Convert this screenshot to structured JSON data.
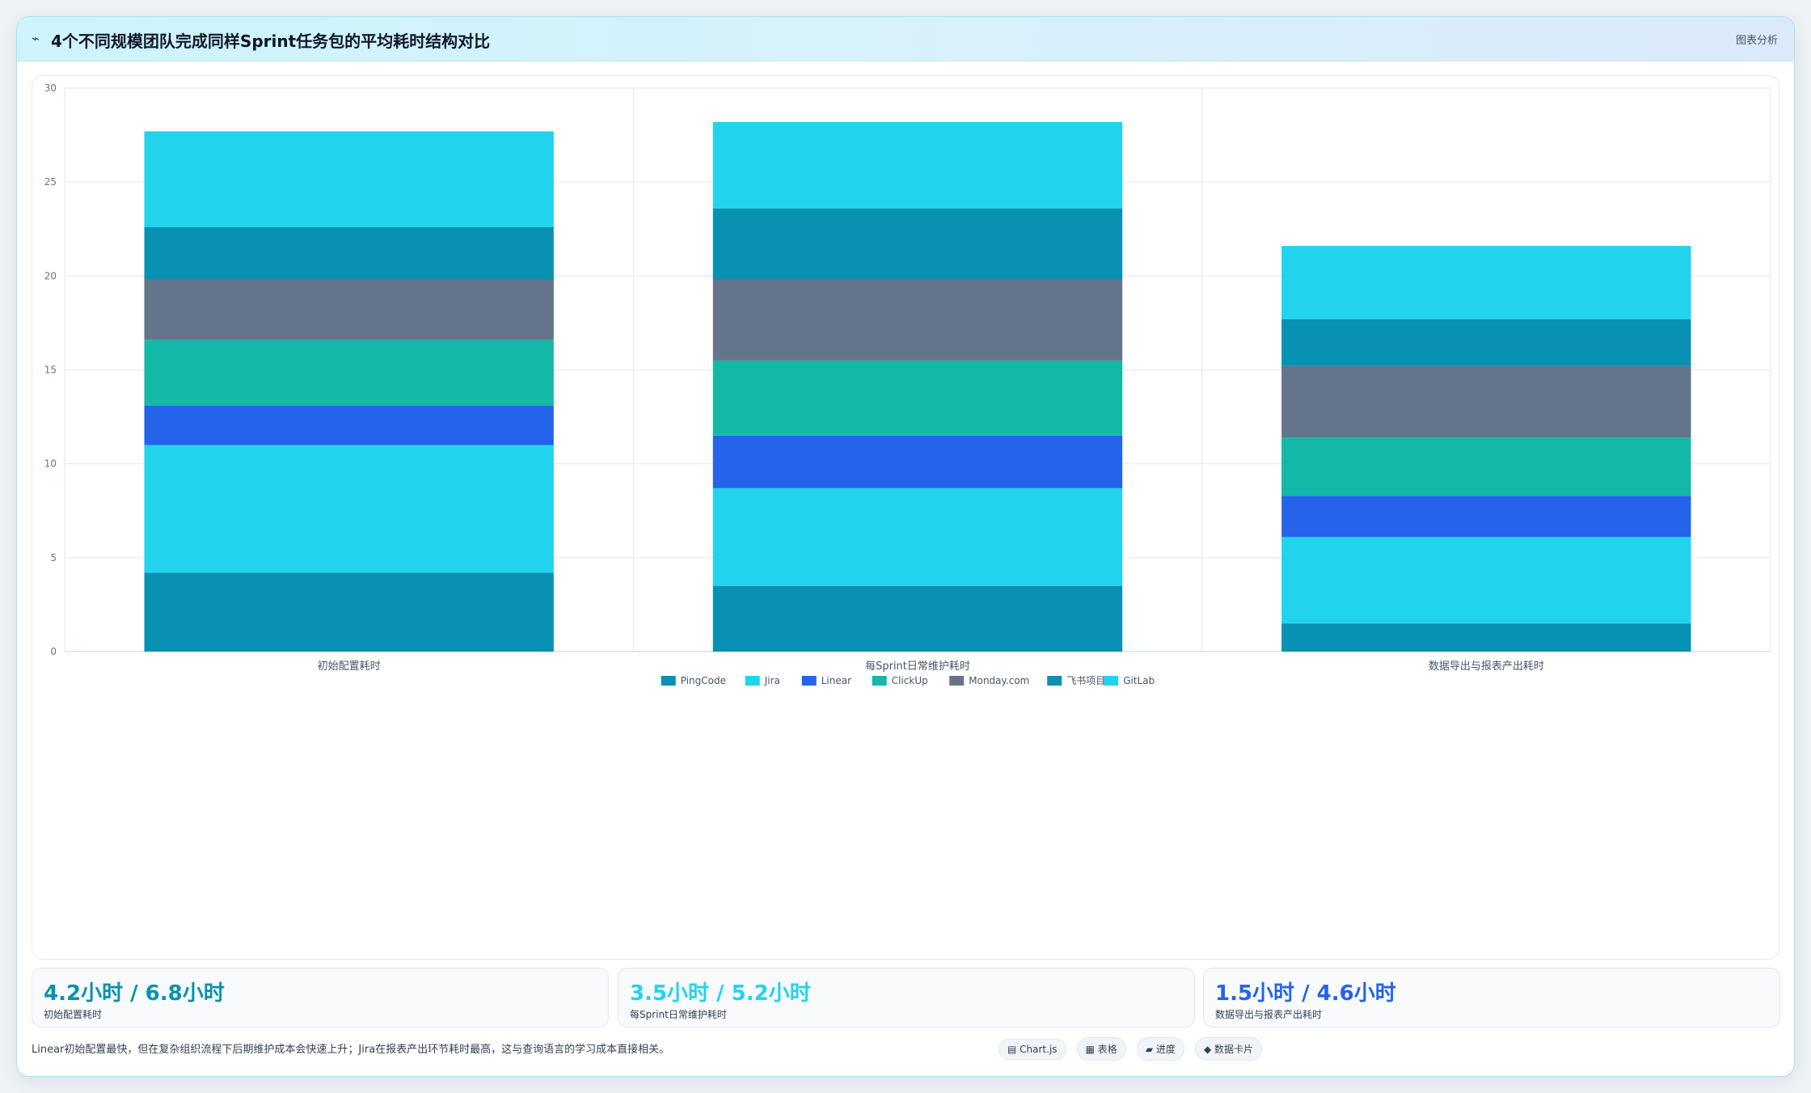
{
  "header": {
    "icon": "chart-line-icon",
    "title": "4个不同规模团队完成同样Sprint任务包的平均耗时结构对比",
    "tag": "图表分析"
  },
  "chart_data": {
    "type": "bar",
    "stacked": true,
    "categories": [
      "初始配置耗时",
      "每Sprint日常维护耗时",
      "数据导出与报表产出耗时"
    ],
    "series": [
      {
        "name": "PingCode",
        "color": "#0891b2",
        "values": [
          4.2,
          3.5,
          1.5
        ]
      },
      {
        "name": "Jira",
        "color": "#22d3ee",
        "values": [
          6.8,
          5.2,
          4.6
        ]
      },
      {
        "name": "Linear",
        "color": "#2563eb",
        "values": [
          2.1,
          2.8,
          2.2
        ]
      },
      {
        "name": "ClickUp",
        "color": "#14b8a6",
        "values": [
          3.5,
          4.0,
          3.1
        ]
      },
      {
        "name": "Monday.com",
        "color": "#64748b",
        "values": [
          3.2,
          4.3,
          3.8
        ]
      },
      {
        "name": "飞书项目",
        "color": "#0891b2",
        "values": [
          2.8,
          3.8,
          2.5
        ]
      },
      {
        "name": "GitLab",
        "color": "#22d3ee",
        "values": [
          5.1,
          4.6,
          3.9
        ]
      }
    ],
    "ylim": [
      0,
      30
    ],
    "yticks": [
      0,
      5,
      10,
      15,
      20,
      25,
      30
    ],
    "grid": true,
    "legend": "bottom"
  },
  "stats": [
    {
      "value": "4.2小时 / 6.8小时",
      "label": "初始配置耗时",
      "color": "#0891b2"
    },
    {
      "value": "3.5小时 / 5.2小时",
      "label": "每Sprint日常维护耗时",
      "color": "#22d3ee"
    },
    {
      "value": "1.5小时 / 4.6小时",
      "label": "数据导出与报表产出耗时",
      "color": "#2563eb"
    }
  ],
  "footer": {
    "note": "Linear初始配置最快，但在复杂组织流程下后期维护成本会快速上升；Jira在报表产出环节耗时最高，这与查询语言的学习成本直接相关。",
    "chips": [
      "▤ Chart.js",
      "▦ 表格",
      "▰ 进度",
      "◆ 数据卡片"
    ]
  }
}
